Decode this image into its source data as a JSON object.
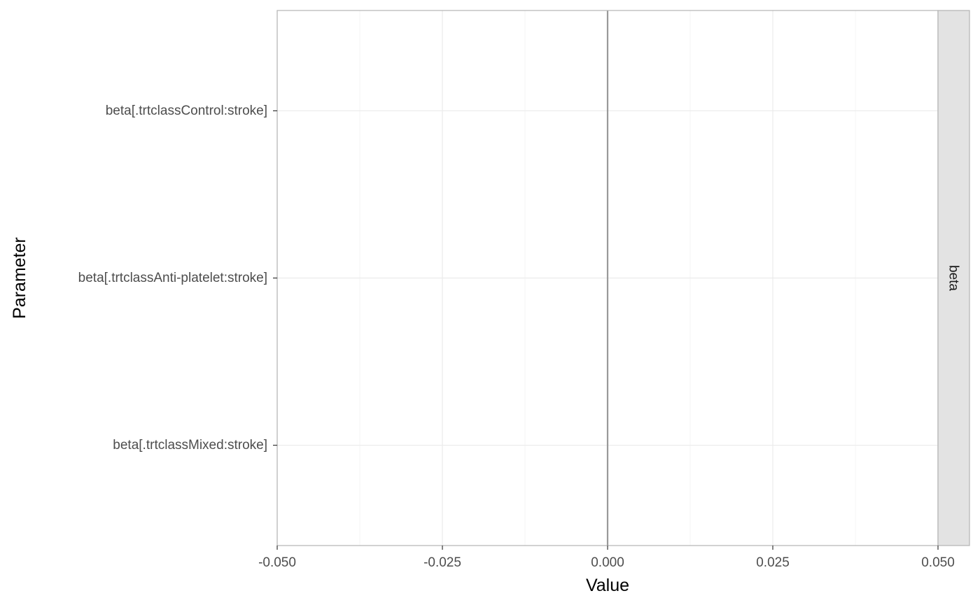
{
  "chart_data": {
    "type": "scatter",
    "xlabel": "Value",
    "ylabel": "Parameter",
    "xlim": [
      -0.05,
      0.05
    ],
    "x_ticks": [
      -0.05,
      -0.025,
      0,
      0.025,
      0.05
    ],
    "x_tick_labels": [
      "-0.050",
      "-0.025",
      "0.000",
      "0.025",
      "0.050"
    ],
    "categories": [
      "beta[.trtclassControl:stroke]",
      "beta[.trtclassAnti-platelet:stroke]",
      "beta[.trtclassMixed:stroke]"
    ],
    "facet_label": "beta",
    "reference_line_x": 0,
    "grid": true,
    "colors": {
      "panel_border": "#b3b3b3",
      "grid_major": "#ebebeb",
      "grid_minor": "#f5f5f5",
      "reference_line": "#999999",
      "strip_fill": "#e3e3e3"
    }
  }
}
